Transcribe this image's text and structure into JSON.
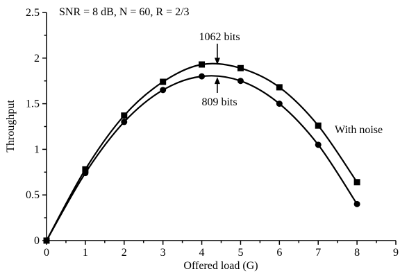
{
  "chart_data": {
    "type": "line",
    "title": "SNR = 8 dB, N = 60, R = 2/3",
    "xlabel": "Offered load (G)",
    "ylabel": "Throughput",
    "xlim": [
      0,
      9
    ],
    "ylim": [
      0,
      2.5
    ],
    "xticks": [
      0,
      1,
      2,
      3,
      4,
      5,
      6,
      7,
      8,
      9
    ],
    "yticks": [
      0,
      0.5,
      1,
      1.5,
      2,
      2.5
    ],
    "ytick_labels": [
      "0",
      "0.5",
      "1",
      "1.5",
      "2",
      "2.5"
    ],
    "grid": false,
    "series": [
      {
        "marker": "square",
        "x": [
          0,
          1,
          2,
          3,
          4,
          5,
          6,
          7,
          8
        ],
        "y": [
          0,
          0.78,
          1.37,
          1.74,
          1.93,
          1.89,
          1.68,
          1.26,
          0.64
        ]
      },
      {
        "marker": "circle",
        "x": [
          0,
          1,
          2,
          3,
          4,
          5,
          6,
          7,
          8
        ],
        "y": [
          0,
          0.74,
          1.3,
          1.65,
          1.8,
          1.75,
          1.5,
          1.05,
          0.4
        ]
      }
    ],
    "annotations": [
      {
        "text": "1062 bits",
        "arrow_to": [
          4.4,
          1.92
        ],
        "direction": "down"
      },
      {
        "text": "809 bits",
        "arrow_to": [
          4.4,
          1.8
        ],
        "direction": "up"
      },
      {
        "text": "With noise"
      }
    ]
  }
}
